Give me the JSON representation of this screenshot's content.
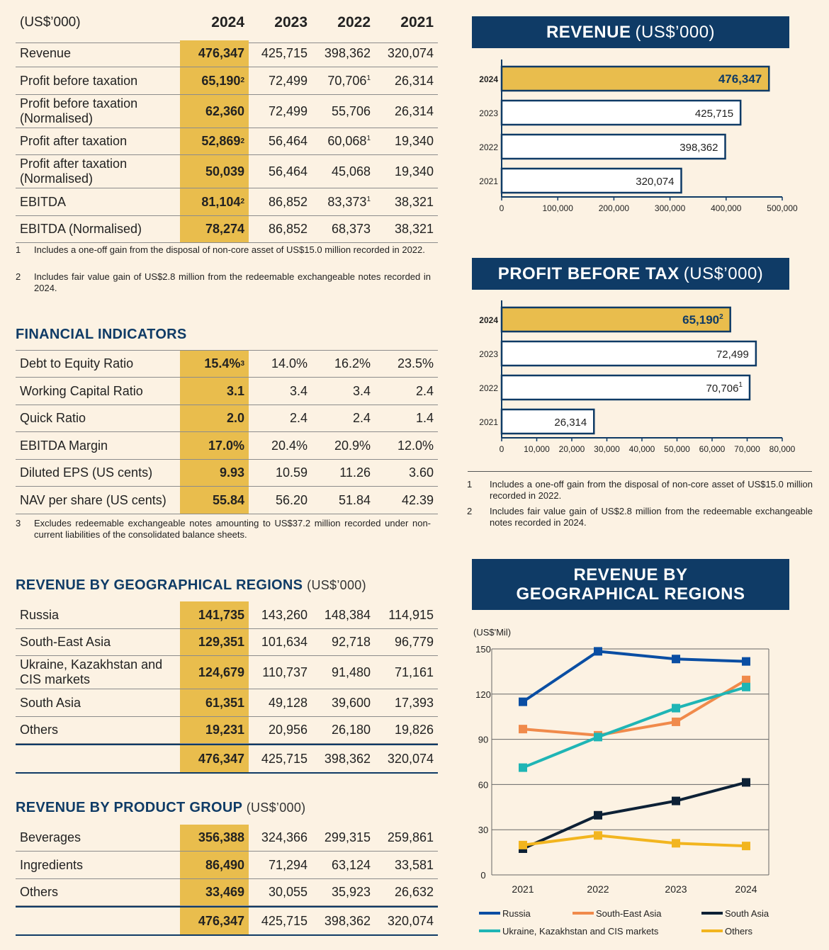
{
  "unit_label": "(US$’000)",
  "years": [
    "2024",
    "2023",
    "2022",
    "2021"
  ],
  "highlights": {
    "rows": [
      {
        "label": "Revenue",
        "v": [
          "476,347",
          "425,715",
          "398,362",
          "320,074"
        ],
        "sup": [
          "",
          "",
          "",
          ""
        ]
      },
      {
        "label": "Profit before taxation",
        "v": [
          "65,190",
          "72,499",
          "70,706",
          "26,314"
        ],
        "sup": [
          "2",
          "",
          "1",
          ""
        ]
      },
      {
        "label": "Profit before taxation (Normalised)",
        "v": [
          "62,360",
          "72,499",
          "55,706",
          "26,314"
        ],
        "sup": [
          "",
          "",
          "",
          ""
        ]
      },
      {
        "label": "Profit after taxation",
        "v": [
          "52,869",
          "56,464",
          "60,068",
          "19,340"
        ],
        "sup": [
          "2",
          "",
          "1",
          ""
        ]
      },
      {
        "label": "Profit after taxation (Normalised)",
        "v": [
          "50,039",
          "56,464",
          "45,068",
          "19,340"
        ],
        "sup": [
          "",
          "",
          "",
          ""
        ]
      },
      {
        "label": "EBITDA",
        "v": [
          "81,104",
          "86,852",
          "83,373",
          "38,321"
        ],
        "sup": [
          "2",
          "",
          "1",
          ""
        ]
      },
      {
        "label": "EBITDA (Normalised)",
        "v": [
          "78,274",
          "86,852",
          "68,373",
          "38,321"
        ],
        "sup": [
          "",
          "",
          "",
          ""
        ]
      }
    ],
    "notes": [
      {
        "n": "1",
        "t": "Includes a one-off gain from the disposal of non-core asset of US$15.0 million recorded in 2022."
      },
      {
        "n": "2",
        "t": "Includes fair value gain of US$2.8 million from the redeemable exchangeable notes recorded in 2024."
      }
    ]
  },
  "indicators": {
    "title": "FINANCIAL INDICATORS",
    "rows": [
      {
        "label": "Debt to Equity Ratio",
        "v": [
          "15.4%",
          "14.0%",
          "16.2%",
          "23.5%"
        ],
        "sup": [
          "3",
          "",
          "",
          ""
        ]
      },
      {
        "label": "Working Capital Ratio",
        "v": [
          "3.1",
          "3.4",
          "3.4",
          "2.4"
        ],
        "sup": [
          "",
          "",
          "",
          ""
        ]
      },
      {
        "label": "Quick Ratio",
        "v": [
          "2.0",
          "2.4",
          "2.4",
          "1.4"
        ],
        "sup": [
          "",
          "",
          "",
          ""
        ]
      },
      {
        "label": "EBITDA Margin",
        "v": [
          "17.0%",
          "20.4%",
          "20.9%",
          "12.0%"
        ],
        "sup": [
          "",
          "",
          "",
          ""
        ]
      },
      {
        "label": "Diluted EPS (US cents)",
        "v": [
          "9.93",
          "10.59",
          "11.26",
          "3.60"
        ],
        "sup": [
          "",
          "",
          "",
          ""
        ]
      },
      {
        "label": "NAV per share (US cents)",
        "v": [
          "55.84",
          "56.20",
          "51.84",
          "42.39"
        ],
        "sup": [
          "",
          "",
          "",
          ""
        ]
      }
    ],
    "note": {
      "n": "3",
      "t": "Excludes redeemable exchangeable notes amounting to US$37.2 million recorded under non-current liabilities of the consolidated balance sheets."
    }
  },
  "regions": {
    "title": "REVENUE BY GEOGRAPHICAL REGIONS",
    "unit": "(US$’000)",
    "rows": [
      {
        "label": "Russia",
        "v": [
          "141,735",
          "143,260",
          "148,384",
          "114,915"
        ]
      },
      {
        "label": "South-East Asia",
        "v": [
          "129,351",
          "101,634",
          "92,718",
          "96,779"
        ]
      },
      {
        "label": "Ukraine, Kazakhstan and CIS markets",
        "v": [
          "124,679",
          "110,737",
          "91,480",
          "71,161"
        ]
      },
      {
        "label": "South Asia",
        "v": [
          "61,351",
          "49,128",
          "39,600",
          "17,393"
        ]
      },
      {
        "label": "Others",
        "v": [
          "19,231",
          "20,956",
          "26,180",
          "19,826"
        ]
      }
    ],
    "total": [
      "476,347",
      "425,715",
      "398,362",
      "320,074"
    ]
  },
  "products": {
    "title": "REVENUE BY PRODUCT GROUP",
    "unit": "(US$’000)",
    "rows": [
      {
        "label": "Beverages",
        "v": [
          "356,388",
          "324,366",
          "299,315",
          "259,861"
        ]
      },
      {
        "label": "Ingredients",
        "v": [
          "86,490",
          "71,294",
          "63,124",
          "33,581"
        ]
      },
      {
        "label": "Others",
        "v": [
          "33,469",
          "30,055",
          "35,923",
          "26,632"
        ]
      }
    ],
    "total": [
      "476,347",
      "425,715",
      "398,362",
      "320,074"
    ]
  },
  "right_notes": [
    {
      "n": "1",
      "t": "Includes a one-off gain from the disposal of non-core asset of US$15.0 million recorded in 2022."
    },
    {
      "n": "2",
      "t": "Includes fair value gain of US$2.8 million from the redeemable exchangeable notes recorded in 2024."
    }
  ],
  "colors": {
    "navy": "#0f3b66",
    "gold": "#e9bd4d",
    "background": "#fcf2e3"
  },
  "chart_data": [
    {
      "type": "bar",
      "orientation": "horizontal",
      "title": "REVENUE",
      "title_unit": "(US$’000)",
      "categories": [
        "2024",
        "2023",
        "2022",
        "2021"
      ],
      "values": [
        476347,
        425715,
        398362,
        320074
      ],
      "value_labels": [
        "476,347",
        "425,715",
        "398,362",
        "320,074"
      ],
      "label_sups": [
        "",
        "",
        "",
        ""
      ],
      "xlim": [
        0,
        500000
      ],
      "ticks": [
        "0",
        "100,000",
        "200,000",
        "300,000",
        "400,000",
        "500,000"
      ],
      "highlight": "2024"
    },
    {
      "type": "bar",
      "orientation": "horizontal",
      "title": "PROFIT BEFORE TAX",
      "title_unit": "(US$’000)",
      "categories": [
        "2024",
        "2023",
        "2022",
        "2021"
      ],
      "values": [
        65190,
        72499,
        70706,
        26314
      ],
      "value_labels": [
        "65,190",
        "72,499",
        "70,706",
        "26,314"
      ],
      "label_sups": [
        "2",
        "",
        "1",
        ""
      ],
      "xlim": [
        0,
        80000
      ],
      "ticks": [
        "0",
        "10,000",
        "20,000",
        "30,000",
        "40,000",
        "50,000",
        "60,000",
        "70,000",
        "80,000"
      ],
      "highlight": "2024"
    },
    {
      "type": "line",
      "title": "REVENUE BY GEOGRAPHICAL REGIONS",
      "ylabel": "(US$'Mil)",
      "x": [
        "2021",
        "2022",
        "2023",
        "2024"
      ],
      "ylim": [
        0,
        150
      ],
      "yticks": [
        0,
        30,
        60,
        90,
        120,
        150
      ],
      "grid": true,
      "legend": "bottom",
      "series": [
        {
          "name": "Russia",
          "color": "#0a4ea3",
          "values": [
            114.9,
            148.4,
            143.3,
            141.7
          ]
        },
        {
          "name": "South-East Asia",
          "color": "#f08a4b",
          "values": [
            96.8,
            92.7,
            101.6,
            129.4
          ]
        },
        {
          "name": "South Asia",
          "color": "#0d2136",
          "values": [
            17.4,
            39.6,
            49.1,
            61.4
          ]
        },
        {
          "name": "Ukraine, Kazakhstan and CIS markets",
          "color": "#1fb5b5",
          "values": [
            71.2,
            91.5,
            110.7,
            124.7
          ]
        },
        {
          "name": "Others",
          "color": "#f2b51f",
          "values": [
            19.8,
            26.2,
            21.0,
            19.2
          ]
        }
      ]
    }
  ]
}
